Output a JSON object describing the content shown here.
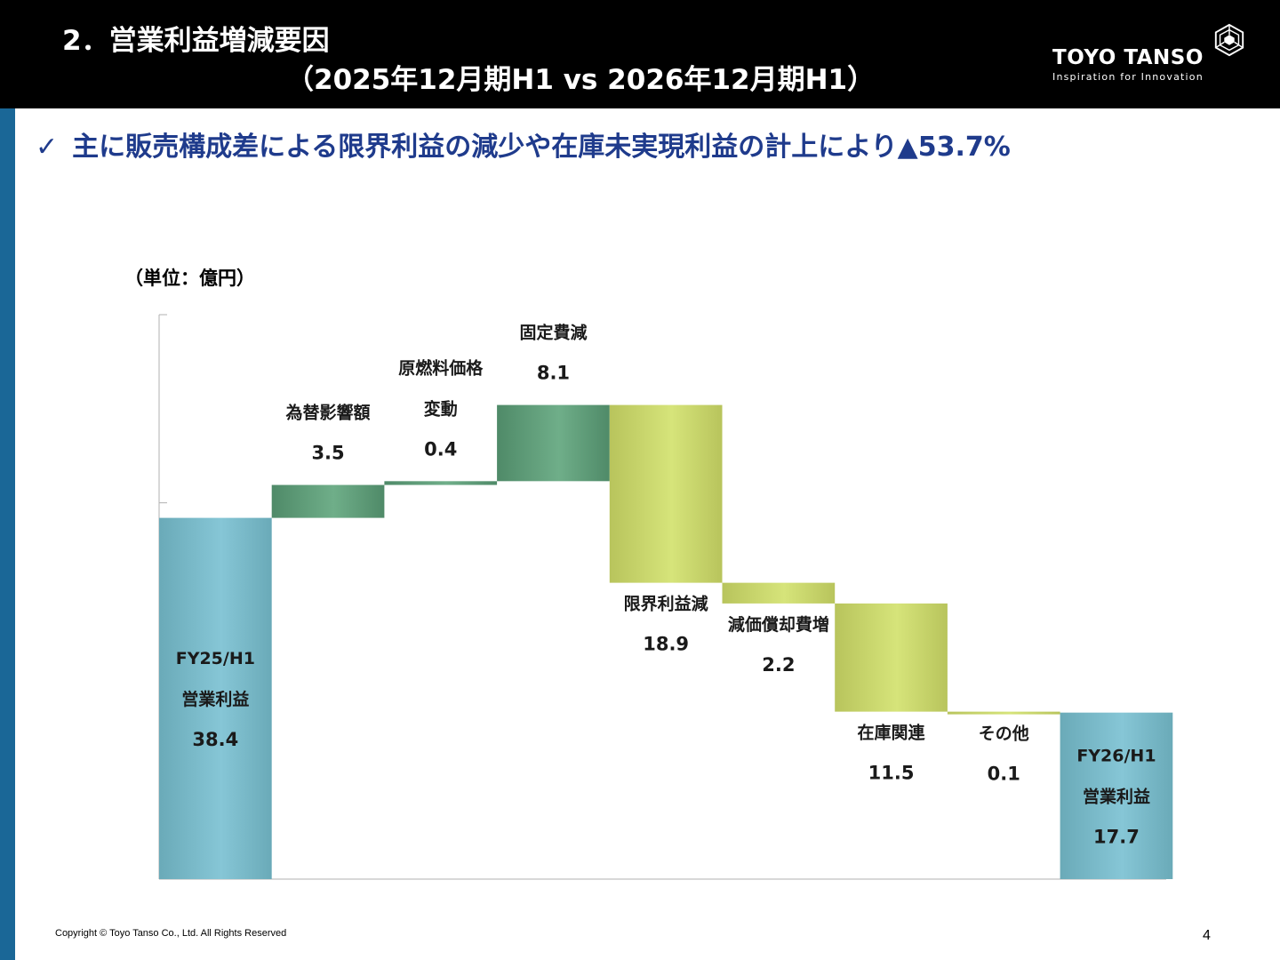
{
  "header": {
    "title_line1": "2．営業利益増減要因",
    "title_line2": "（2025年12月期H1 vs 2026年12月期H1）",
    "logo_name": "TOYO TANSO",
    "logo_tagline": "Inspiration for Innovation",
    "logo_icon": "hexagon-logo-icon"
  },
  "subtitle": {
    "check_glyph": "✓",
    "text": "主に販売構成差による限界利益の減少や在庫未実現利益の計上により▲53.7%"
  },
  "colors": {
    "header_bg": "#000000",
    "sidebar": "#1a6797",
    "subtitle_text": "#1f3b8c",
    "total_bar": "#86c6d6",
    "increase_bar": "#6fae89",
    "decrease_bar": "#d6e47a"
  },
  "chart_data": {
    "type": "waterfall",
    "unit_label": "（単位：億円）",
    "ylim": [
      0,
      60
    ],
    "grid": false,
    "bars": [
      {
        "label_lines": [
          "FY25/H1",
          "営業利益"
        ],
        "value_text": "38.4",
        "kind": "total",
        "start": 0,
        "end": 38.4
      },
      {
        "label_lines": [
          "為替影響額"
        ],
        "value_text": "3.5",
        "kind": "increase",
        "start": 38.4,
        "end": 41.9
      },
      {
        "label_lines": [
          "原燃料価格",
          "変動"
        ],
        "value_text": "0.4",
        "kind": "increase",
        "start": 41.9,
        "end": 42.3
      },
      {
        "label_lines": [
          "固定費減"
        ],
        "value_text": "8.1",
        "kind": "increase",
        "start": 42.3,
        "end": 50.4
      },
      {
        "label_lines": [
          "限界利益減"
        ],
        "value_text": "18.9",
        "kind": "decrease",
        "start": 50.4,
        "end": 31.5
      },
      {
        "label_lines": [
          "減価償却費増"
        ],
        "value_text": "2.2",
        "kind": "decrease",
        "start": 31.5,
        "end": 29.3
      },
      {
        "label_lines": [
          "在庫関連"
        ],
        "value_text": "11.5",
        "kind": "decrease",
        "start": 29.3,
        "end": 17.8
      },
      {
        "label_lines": [
          "その他"
        ],
        "value_text": "0.1",
        "kind": "decrease",
        "start": 17.8,
        "end": 17.7
      },
      {
        "label_lines": [
          "FY26/H1",
          "営業利益"
        ],
        "value_text": "17.7",
        "kind": "total",
        "start": 0,
        "end": 17.7
      }
    ]
  },
  "footer": {
    "copyright": "Copyright © Toyo Tanso Co., Ltd. All Rights Reserved",
    "page_number": "4"
  }
}
